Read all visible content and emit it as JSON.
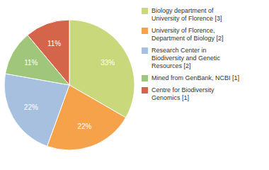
{
  "chart_data": {
    "type": "pie",
    "categories": [
      "Biology department of\nUniversity of Florence [3]",
      "University of Florence,\nDepartment of Biology [2]",
      "Research Center in\nBiodiversity and Genetic\nResources [2]",
      "Mined from GenBank, NCBI [1]",
      "Centre for Biodiversity\nGenomics [1]"
    ],
    "values": [
      33,
      22,
      22,
      11,
      11
    ],
    "value_labels": [
      "33%",
      "22%",
      "22%",
      "11%",
      "11%"
    ],
    "colors": [
      "#c8d87a",
      "#f5a24b",
      "#a8c0e0",
      "#9fc67a",
      "#d4644a"
    ],
    "data_labels": true,
    "legend": "right"
  }
}
